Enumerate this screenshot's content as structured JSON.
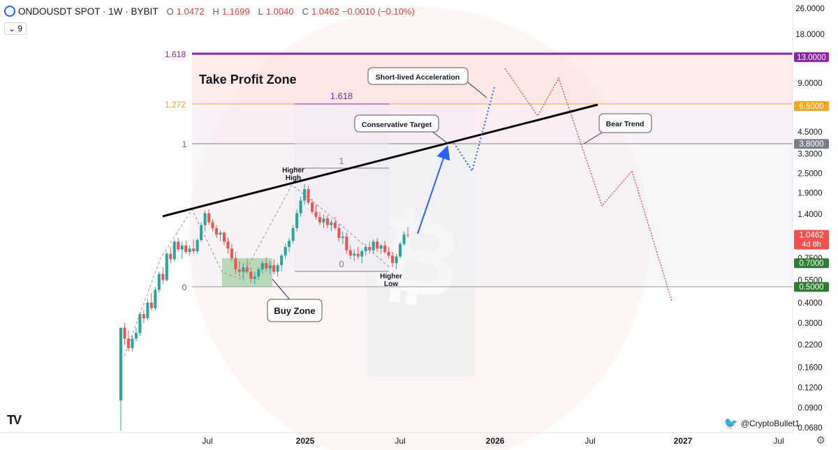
{
  "header": {
    "symbol": "ONDOUSDT SPOT · 1W · BYBIT",
    "o_label": "O",
    "o": "1.0472",
    "h_label": "H",
    "h": "1.1699",
    "l_label": "L",
    "l": "1.0040",
    "c_label": "C",
    "c": "1.0462",
    "change": "−0.0010 (−0.10%)",
    "indicator_value": "9"
  },
  "credit": "@CryptoBullet1",
  "colors": {
    "bull": "#26a69a",
    "bear": "#ef5350",
    "purple": "#8e24aa",
    "orange": "#f5a623",
    "gray_line": "#7b7f8c",
    "buy_zone": "#9ccc9c",
    "take_profit": "#fde0dc",
    "blue_arrow": "#2962ff",
    "red_dotted": "#e53935"
  },
  "chart_data": {
    "type": "candlestick",
    "title": "ONDOUSDT SPOT · 1W · BYBIT",
    "y_scale": "log",
    "ylim": [
      0.064,
      27
    ],
    "x_ticks": [
      "Jul",
      "2025",
      "Jul",
      "2026",
      "Jul",
      "2027",
      "Jul"
    ],
    "y_ticks": [
      "26.0000",
      "18.0000",
      "13.0000",
      "9.0000",
      "6.5000",
      "4.5000",
      "3.3000",
      "2.5000",
      "1.9000",
      "1.4000",
      "1.0462",
      "0.7500",
      "0.5500",
      "0.4000",
      "0.3000",
      "0.2200",
      "0.1600",
      "0.1200",
      "0.0900",
      "0.0680"
    ],
    "price_tags": [
      {
        "label": "13.0000",
        "value": 13.0,
        "color": "#8e24aa"
      },
      {
        "label": "6.5000",
        "value": 6.5,
        "color": "#f5a623"
      },
      {
        "label": "3.8000",
        "value": 3.8,
        "color": "#7b7f8c"
      },
      {
        "label": "1.0462",
        "sub": "4d 8h",
        "value": 1.0462,
        "color": "#ef5350"
      },
      {
        "label": "0.7000",
        "value": 0.7,
        "color": "#2e7d32"
      },
      {
        "label": "0.5000",
        "value": 0.5,
        "color": "#2e7d32"
      }
    ],
    "fib_levels": [
      {
        "label": "1.618",
        "value": 13.0,
        "color": "#8e24aa"
      },
      {
        "label": "1.272",
        "value": 6.5,
        "color": "#f5a623"
      },
      {
        "label": "1",
        "value": 3.8,
        "color": "#7b7f8c"
      },
      {
        "label": "0",
        "value": 0.5,
        "color": "#7b7f8c"
      }
    ],
    "inner_fib": [
      {
        "label": "1.618",
        "value": 6.5
      },
      {
        "label": "1",
        "value": 2.68
      },
      {
        "label": "0",
        "value": 0.64
      }
    ],
    "annotations": {
      "take_profit": "Take Profit Zone",
      "short_lived": "Short-lived Acceleration",
      "conservative": "Conservative Target",
      "bear_trend": "Bear Trend",
      "buy_zone": "Buy Zone",
      "higher_high": [
        "Higher",
        "High"
      ],
      "higher_low": [
        "Higher",
        "Low"
      ]
    },
    "candles": [
      [
        0.1,
        0.28,
        0.065,
        0.28
      ],
      [
        0.28,
        0.3,
        0.22,
        0.24
      ],
      [
        0.24,
        0.27,
        0.2,
        0.21
      ],
      [
        0.21,
        0.25,
        0.2,
        0.24
      ],
      [
        0.24,
        0.28,
        0.23,
        0.26
      ],
      [
        0.26,
        0.35,
        0.25,
        0.34
      ],
      [
        0.34,
        0.36,
        0.3,
        0.32
      ],
      [
        0.32,
        0.42,
        0.31,
        0.4
      ],
      [
        0.4,
        0.46,
        0.36,
        0.37
      ],
      [
        0.37,
        0.5,
        0.36,
        0.48
      ],
      [
        0.48,
        0.62,
        0.46,
        0.6
      ],
      [
        0.6,
        0.66,
        0.52,
        0.55
      ],
      [
        0.55,
        0.82,
        0.54,
        0.8
      ],
      [
        0.8,
        0.88,
        0.7,
        0.74
      ],
      [
        0.74,
        0.98,
        0.72,
        0.95
      ],
      [
        0.95,
        1.0,
        0.82,
        0.85
      ],
      [
        0.85,
        0.95,
        0.75,
        0.9
      ],
      [
        0.9,
        0.96,
        0.8,
        0.82
      ],
      [
        0.82,
        0.9,
        0.78,
        0.86
      ],
      [
        0.86,
        0.98,
        0.8,
        0.83
      ],
      [
        0.83,
        1.0,
        0.8,
        0.97
      ],
      [
        0.97,
        1.25,
        0.95,
        1.2
      ],
      [
        1.2,
        1.48,
        1.1,
        1.42
      ],
      [
        1.42,
        1.5,
        1.2,
        1.25
      ],
      [
        1.25,
        1.3,
        1.1,
        1.15
      ],
      [
        1.15,
        1.2,
        1.0,
        1.05
      ],
      [
        1.05,
        1.12,
        0.96,
        1.08
      ],
      [
        1.08,
        1.1,
        0.9,
        0.95
      ],
      [
        0.95,
        1.0,
        0.8,
        0.86
      ],
      [
        0.86,
        0.92,
        0.72,
        0.75
      ],
      [
        0.75,
        0.82,
        0.6,
        0.64
      ],
      [
        0.64,
        0.72,
        0.58,
        0.62
      ],
      [
        0.62,
        0.7,
        0.55,
        0.66
      ],
      [
        0.66,
        0.74,
        0.6,
        0.62
      ],
      [
        0.62,
        0.66,
        0.53,
        0.56
      ],
      [
        0.56,
        0.62,
        0.52,
        0.58
      ],
      [
        0.58,
        0.66,
        0.55,
        0.64
      ],
      [
        0.64,
        0.72,
        0.6,
        0.7
      ],
      [
        0.7,
        0.76,
        0.62,
        0.65
      ],
      [
        0.65,
        0.72,
        0.6,
        0.68
      ],
      [
        0.68,
        0.74,
        0.6,
        0.62
      ],
      [
        0.62,
        0.7,
        0.58,
        0.68
      ],
      [
        0.68,
        0.8,
        0.62,
        0.78
      ],
      [
        0.78,
        0.92,
        0.74,
        0.88
      ],
      [
        0.88,
        1.0,
        0.82,
        0.96
      ],
      [
        0.96,
        1.2,
        0.92,
        1.15
      ],
      [
        1.15,
        1.5,
        1.1,
        1.42
      ],
      [
        1.42,
        1.8,
        1.35,
        1.7
      ],
      [
        1.7,
        2.15,
        1.6,
        2.0
      ],
      [
        2.0,
        2.1,
        1.6,
        1.65
      ],
      [
        1.65,
        1.75,
        1.4,
        1.45
      ],
      [
        1.45,
        1.6,
        1.3,
        1.35
      ],
      [
        1.35,
        1.45,
        1.2,
        1.25
      ],
      [
        1.25,
        1.4,
        1.15,
        1.32
      ],
      [
        1.32,
        1.38,
        1.15,
        1.2
      ],
      [
        1.2,
        1.3,
        1.1,
        1.25
      ],
      [
        1.25,
        1.35,
        1.12,
        1.15
      ],
      [
        1.15,
        1.22,
        0.95,
        1.0
      ],
      [
        1.0,
        1.1,
        0.92,
        1.02
      ],
      [
        1.02,
        1.08,
        0.8,
        0.84
      ],
      [
        0.84,
        0.9,
        0.74,
        0.78
      ],
      [
        0.78,
        0.85,
        0.72,
        0.8
      ],
      [
        0.8,
        0.88,
        0.74,
        0.77
      ],
      [
        0.77,
        0.85,
        0.7,
        0.83
      ],
      [
        0.83,
        0.92,
        0.78,
        0.88
      ],
      [
        0.88,
        0.95,
        0.8,
        0.84
      ],
      [
        0.84,
        0.98,
        0.8,
        0.95
      ],
      [
        0.95,
        1.0,
        0.82,
        0.86
      ],
      [
        0.86,
        0.92,
        0.8,
        0.9
      ],
      [
        0.9,
        0.96,
        0.8,
        0.82
      ],
      [
        0.82,
        0.88,
        0.75,
        0.78
      ],
      [
        0.78,
        0.82,
        0.66,
        0.7
      ],
      [
        0.7,
        0.8,
        0.64,
        0.77
      ],
      [
        0.77,
        0.95,
        0.75,
        0.92
      ],
      [
        0.92,
        1.1,
        0.9,
        1.05
      ],
      [
        1.0472,
        1.1699,
        1.004,
        1.0462
      ]
    ]
  }
}
